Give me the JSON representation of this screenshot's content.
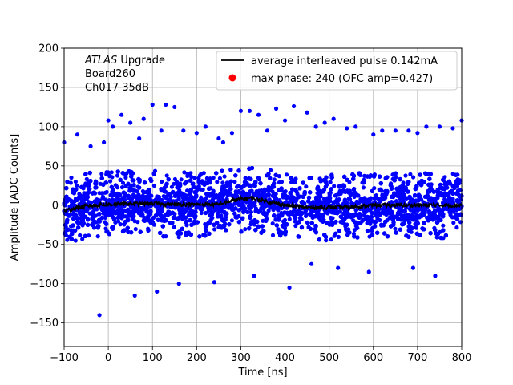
{
  "chart_data": {
    "type": "scatter",
    "xlabel": "Time [ns]",
    "ylabel": "Amplitude [ADC Counts]",
    "xlim": [
      -100,
      800
    ],
    "ylim": [
      -180,
      200
    ],
    "xticks": [
      -100,
      0,
      100,
      200,
      300,
      400,
      500,
      600,
      700,
      800
    ],
    "yticks": [
      -150,
      -100,
      -50,
      0,
      50,
      100,
      150,
      200
    ],
    "grid": true,
    "legend_position": "top-right",
    "annotation": {
      "line1_italic": "ATLAS",
      "line1_rest": " Upgrade",
      "line2": " Board260",
      "line3": " Ch017 35dB"
    },
    "series": [
      {
        "name": "average interleaved pulse 0.142mA",
        "kind": "line",
        "color": "#000000",
        "x": [
          -100,
          -50,
          0,
          50,
          100,
          150,
          200,
          250,
          275,
          300,
          325,
          350,
          375,
          400,
          450,
          500,
          550,
          600,
          650,
          700,
          750,
          800
        ],
        "y": [
          -7,
          -1,
          1,
          2,
          2,
          1,
          1,
          1,
          5,
          8,
          9,
          6,
          3,
          0,
          -3,
          -3,
          -2,
          0,
          0,
          0,
          0,
          0
        ]
      },
      {
        "name": "max phase: 240 (OFC amp=0.427)",
        "kind": "scatter",
        "color": "#ff0000"
      }
    ],
    "scatter_cloud": {
      "color": "#0000ff",
      "x_range": [
        -100,
        800
      ],
      "core_band": [
        -30,
        30
      ],
      "spread_to": [
        -140,
        130
      ]
    },
    "outliers": {
      "x": [
        -100,
        -70,
        -40,
        -10,
        0,
        10,
        30,
        50,
        70,
        80,
        100,
        120,
        130,
        150,
        170,
        200,
        220,
        250,
        260,
        280,
        300,
        320,
        340,
        360,
        380,
        400,
        420,
        450,
        470,
        490,
        510,
        540,
        560,
        600,
        620,
        650,
        680,
        700,
        720,
        750,
        780,
        800,
        460,
        520,
        590,
        410,
        330,
        240,
        160,
        110,
        60,
        -20,
        690,
        740
      ],
      "y": [
        80,
        90,
        75,
        80,
        108,
        100,
        115,
        105,
        85,
        110,
        128,
        95,
        128,
        125,
        95,
        92,
        100,
        85,
        80,
        92,
        120,
        120,
        115,
        95,
        123,
        108,
        126,
        118,
        100,
        105,
        110,
        98,
        100,
        90,
        95,
        95,
        95,
        92,
        100,
        100,
        98,
        108,
        -75,
        -80,
        -85,
        -105,
        -90,
        -98,
        -100,
        -110,
        -115,
        -140,
        -80,
        -90
      ]
    }
  }
}
